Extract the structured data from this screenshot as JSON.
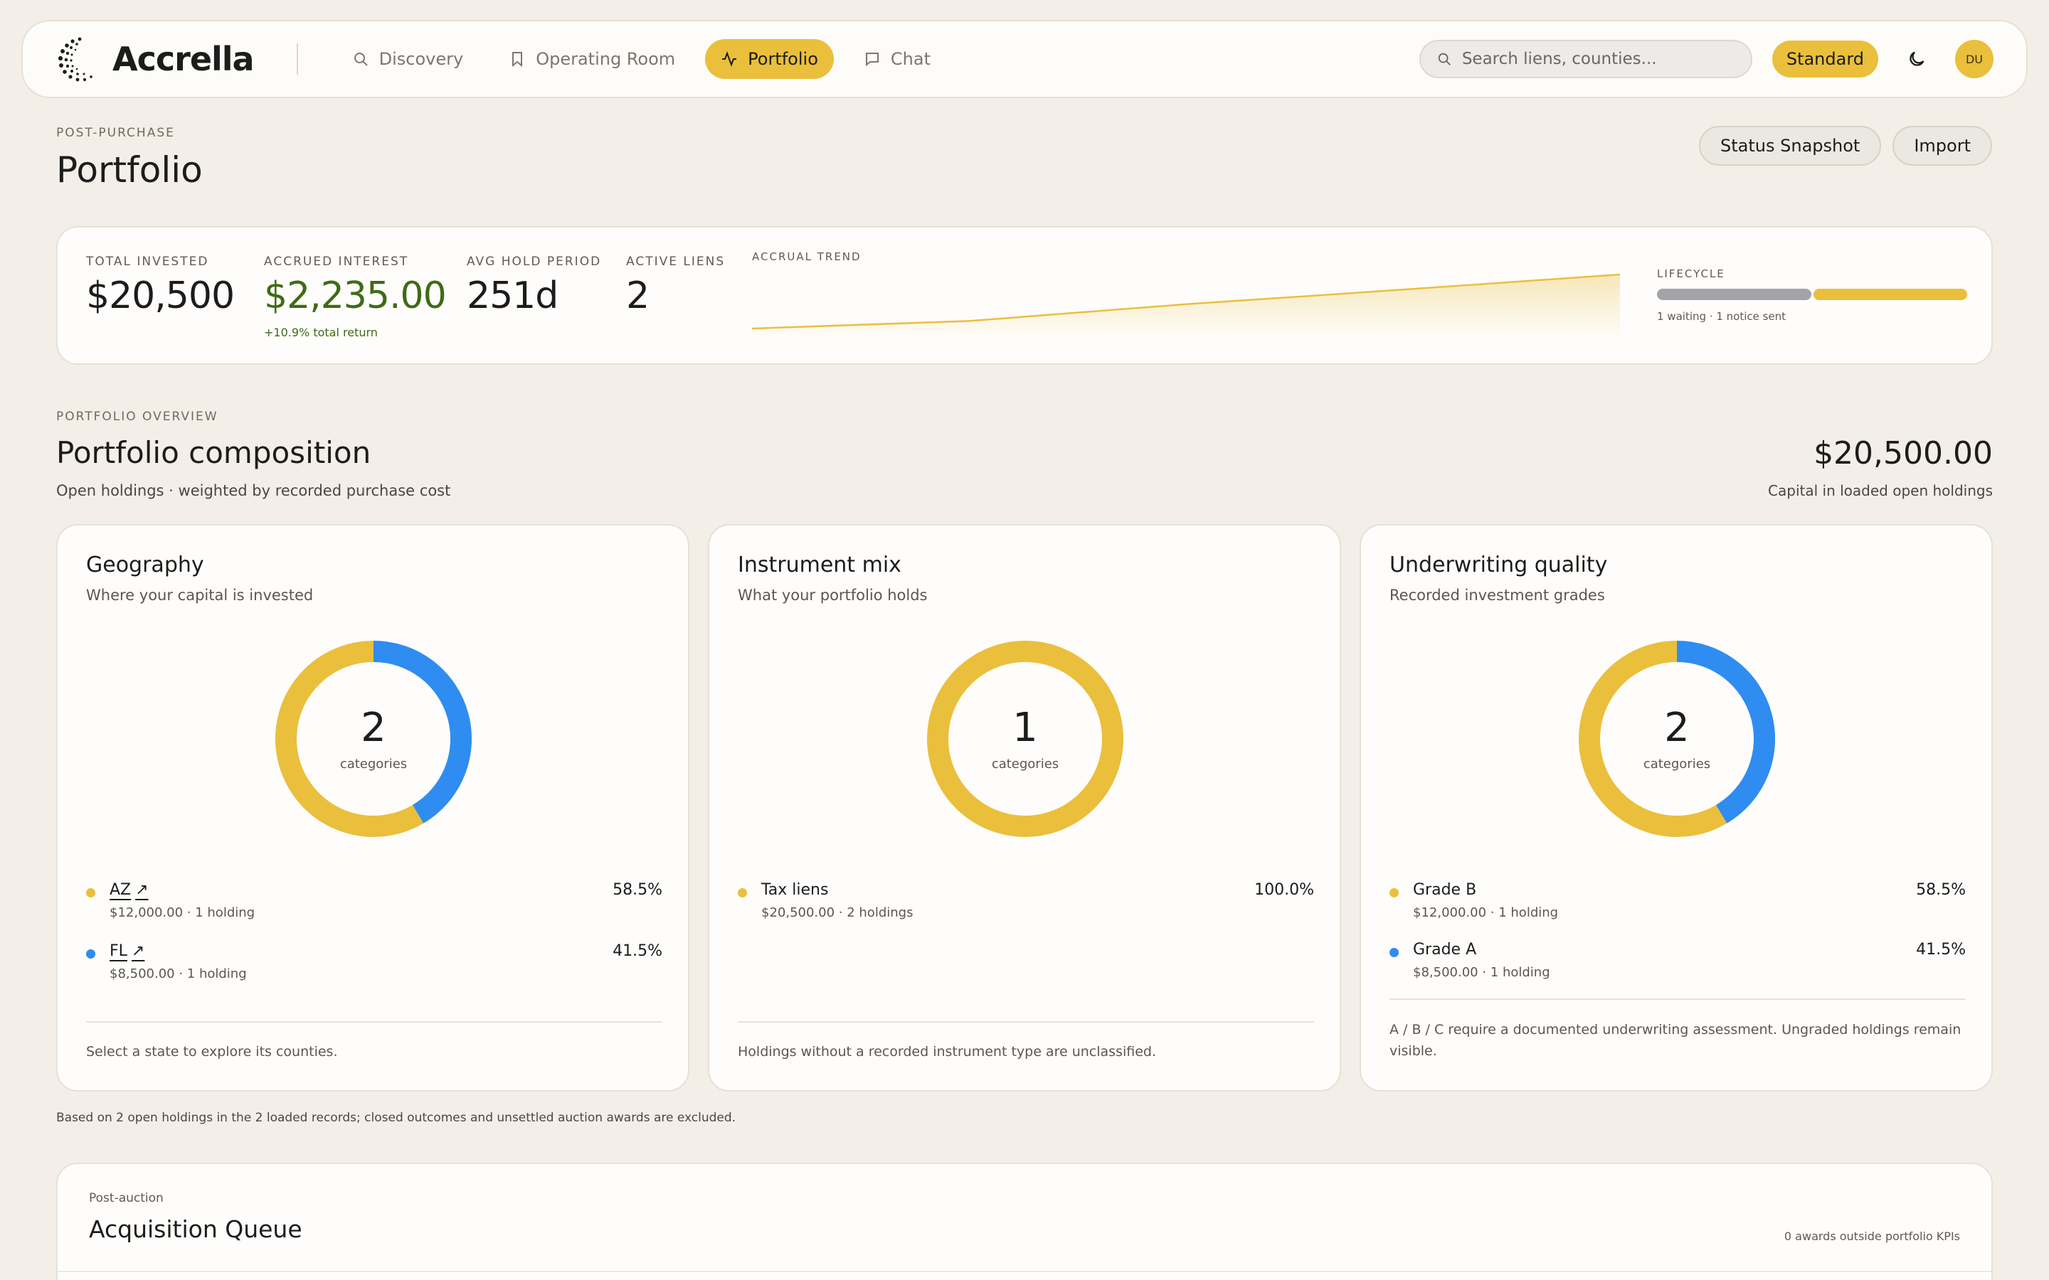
{
  "brand": {
    "name": "Accrella"
  },
  "nav": {
    "items": [
      {
        "label": "Discovery",
        "icon": "search-icon"
      },
      {
        "label": "Operating Room",
        "icon": "bookmark-icon"
      },
      {
        "label": "Portfolio",
        "icon": "activity-icon",
        "active": true
      },
      {
        "label": "Chat",
        "icon": "chat-icon"
      }
    ],
    "search_placeholder": "Search liens, counties...",
    "plan_label": "Standard",
    "avatar_initials": "DU"
  },
  "page": {
    "eyebrow": "POST-PURCHASE",
    "title": "Portfolio",
    "actions": {
      "status_snapshot": "Status Snapshot",
      "import": "Import"
    }
  },
  "kpis": {
    "total_invested": {
      "label": "TOTAL INVESTED",
      "value": "$20,500"
    },
    "accrued_interest": {
      "label": "ACCRUED INTEREST",
      "value": "$2,235.00",
      "sub": "+10.9% total return"
    },
    "avg_hold": {
      "label": "AVG HOLD PERIOD",
      "value": "251d"
    },
    "active_liens": {
      "label": "ACTIVE LIENS",
      "value": "2"
    },
    "trend_label": "ACCRUAL TREND",
    "lifecycle": {
      "label": "LIFECYCLE",
      "note": "1 waiting · 1 notice sent",
      "segments": [
        {
          "name": "waiting",
          "count": 1,
          "color": "#a3a3a8"
        },
        {
          "name": "notice sent",
          "count": 1,
          "color": "#eabf3c"
        }
      ]
    }
  },
  "chart_data": [
    {
      "type": "area",
      "title": "ACCRUAL TREND",
      "x": [
        0,
        1,
        2,
        3,
        4
      ],
      "values": [
        0,
        0.14,
        0.45,
        0.72,
        1.0
      ]
    },
    {
      "type": "pie",
      "title": "Geography",
      "categories": [
        "AZ",
        "FL"
      ],
      "values": [
        58.5,
        41.5
      ],
      "colors": [
        "#eabf3c",
        "#2f8cf0"
      ]
    },
    {
      "type": "pie",
      "title": "Instrument mix",
      "categories": [
        "Tax liens"
      ],
      "values": [
        100.0
      ],
      "colors": [
        "#eabf3c"
      ]
    },
    {
      "type": "pie",
      "title": "Underwriting quality",
      "categories": [
        "Grade B",
        "Grade A"
      ],
      "values": [
        58.5,
        41.5
      ],
      "colors": [
        "#eabf3c",
        "#2f8cf0"
      ]
    }
  ],
  "overview": {
    "eyebrow": "PORTFOLIO OVERVIEW",
    "title": "Portfolio composition",
    "subtitle": "Open holdings · weighted by recorded purchase cost",
    "total": "$20,500.00",
    "total_sub": "Capital in loaded open holdings",
    "basis_note": "Based on 2 open holdings in the 2 loaded records; closed outcomes and unsettled auction awards are excluded.",
    "panels": [
      {
        "title": "Geography",
        "subtitle": "Where your capital is invested",
        "center_value": "2",
        "center_caption": "categories",
        "legend": [
          {
            "name": "AZ",
            "meta": "$12,000.00 · 1 holding",
            "pct": "58.5%",
            "color": "#eabf3c",
            "link": true
          },
          {
            "name": "FL",
            "meta": "$8,500.00 · 1 holding",
            "pct": "41.5%",
            "color": "#2f8cf0",
            "link": true
          }
        ],
        "footer": "Select a state to explore its counties."
      },
      {
        "title": "Instrument mix",
        "subtitle": "What your portfolio holds",
        "center_value": "1",
        "center_caption": "categories",
        "legend": [
          {
            "name": "Tax liens",
            "meta": "$20,500.00 · 2 holdings",
            "pct": "100.0%",
            "color": "#eabf3c",
            "link": false
          }
        ],
        "footer": "Holdings without a recorded instrument type are unclassified."
      },
      {
        "title": "Underwriting quality",
        "subtitle": "Recorded investment grades",
        "center_value": "2",
        "center_caption": "categories",
        "legend": [
          {
            "name": "Grade B",
            "meta": "$12,000.00 · 1 holding",
            "pct": "58.5%",
            "color": "#eabf3c",
            "link": false
          },
          {
            "name": "Grade A",
            "meta": "$8,500.00 · 1 holding",
            "pct": "41.5%",
            "color": "#2f8cf0",
            "link": false
          }
        ],
        "footer": "A / B / C require a documented underwriting assessment. Ungraded holdings remain visible."
      }
    ]
  },
  "queue": {
    "eyebrow": "Post-auction",
    "title": "Acquisition Queue",
    "note": "0 awards outside portfolio KPIs"
  }
}
